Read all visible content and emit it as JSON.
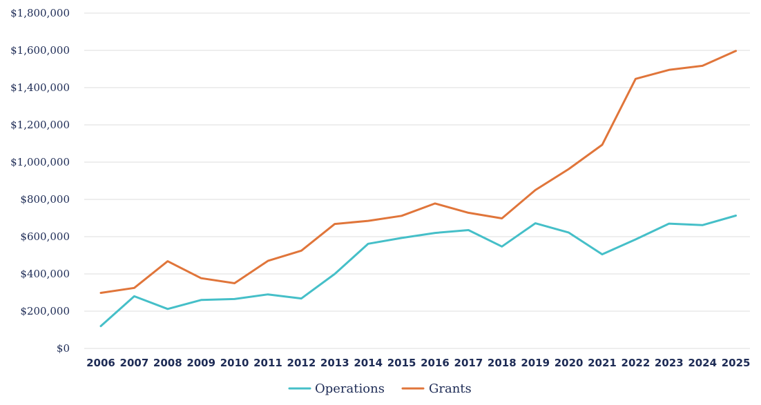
{
  "chart_data": {
    "type": "line",
    "x": [
      "2006",
      "2007",
      "2008",
      "2009",
      "2010",
      "2011",
      "2012",
      "2013",
      "2014",
      "2015",
      "2016",
      "2017",
      "2018",
      "2019",
      "2020",
      "2021",
      "2022",
      "2023",
      "2024",
      "2025"
    ],
    "y_ticks": [
      0,
      200000,
      400000,
      600000,
      800000,
      1000000,
      1200000,
      1400000,
      1600000,
      1800000
    ],
    "y_tick_labels": [
      "$0",
      "$200,000",
      "$400,000",
      "$600,000",
      "$800,000",
      "$1,000,000",
      "$1,200,000",
      "$1,400,000",
      "$1,600,000",
      "$1,800,000"
    ],
    "ylim": [
      0,
      1800000
    ],
    "grid": "horizontal",
    "legend_position": "bottom-center",
    "series": [
      {
        "name": "Operations",
        "color": "#45bfc8",
        "values": [
          120000,
          280000,
          212000,
          260000,
          265000,
          290000,
          268000,
          400000,
          562000,
          593000,
          620000,
          635000,
          547000,
          672000,
          622000,
          505000,
          585000,
          670000,
          662000,
          713000
        ]
      },
      {
        "name": "Grants",
        "color": "#e0753a",
        "values": [
          298000,
          325000,
          468000,
          377000,
          350000,
          470000,
          525000,
          668000,
          685000,
          712000,
          778000,
          728000,
          698000,
          850000,
          963000,
          1093000,
          1447000,
          1495000,
          1517000,
          1597000
        ]
      }
    ]
  }
}
